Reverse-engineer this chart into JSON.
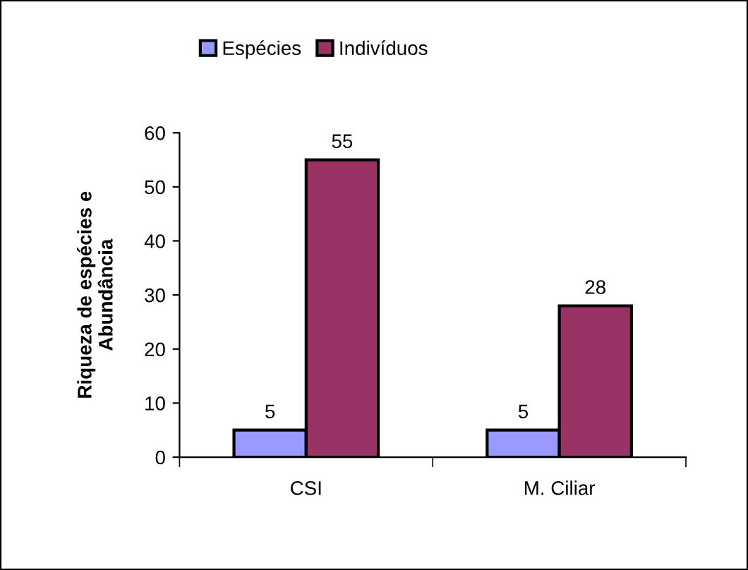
{
  "chart_data": {
    "type": "bar",
    "ylabel": "Riqueza de espécies e\nAbundância",
    "categories": [
      "CSI",
      "M. Ciliar"
    ],
    "series": [
      {
        "name": "Espécies",
        "color": "#9999ff",
        "values": [
          5,
          5
        ]
      },
      {
        "name": "Indivíduos",
        "color": "#993366",
        "values": [
          55,
          28
        ]
      }
    ],
    "ylim": [
      0,
      60
    ],
    "yticks": [
      0,
      10,
      20,
      30,
      40,
      50,
      60
    ],
    "grid": false,
    "legend": "top",
    "data_labels": true
  }
}
